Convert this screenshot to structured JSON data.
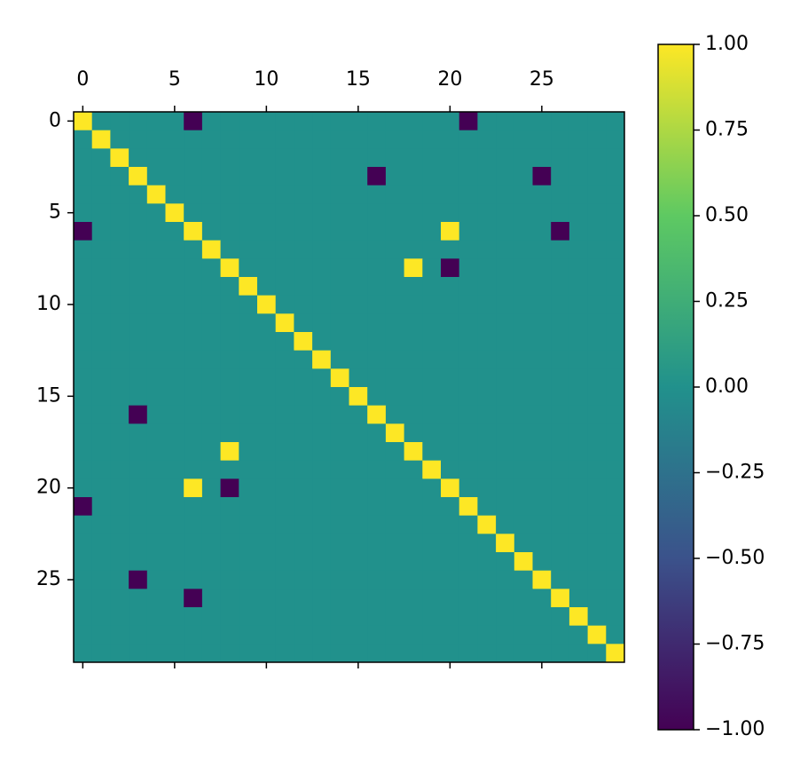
{
  "chart_data": {
    "type": "heatmap",
    "xlim": [
      -0.5,
      29.5
    ],
    "ylim": [
      29.5,
      -0.5
    ],
    "xticks": [
      0,
      5,
      10,
      15,
      20,
      25
    ],
    "yticks": [
      0,
      5,
      10,
      15,
      20,
      25
    ],
    "colorscale": [
      "#440154",
      "#3b528b",
      "#21918c",
      "#5ec962",
      "#fde725"
    ],
    "colorbar_lim": [
      -1,
      1
    ],
    "colorbar_ticks": [
      {
        "value": 1,
        "label": "1.00"
      },
      {
        "value": 0.75,
        "label": "0.75"
      },
      {
        "value": 0.5,
        "label": "0.50"
      },
      {
        "value": 0.25,
        "label": "0.25"
      },
      {
        "value": 0,
        "label": "0.00"
      },
      {
        "value": -0.25,
        "label": "−0.25"
      },
      {
        "value": -0.5,
        "label": "−0.50"
      },
      {
        "value": -0.75,
        "label": "−0.75"
      },
      {
        "value": -1,
        "label": "−1.00"
      }
    ],
    "values": [
      [
        1,
        0,
        0,
        0,
        0,
        0,
        -1,
        0,
        0,
        0,
        0,
        0,
        0,
        0,
        0,
        0,
        0,
        0,
        0,
        0,
        0,
        -1,
        0,
        0,
        0,
        0,
        0,
        0,
        0,
        0
      ],
      [
        0,
        1,
        0,
        0,
        0,
        0,
        0,
        0,
        0,
        0,
        0,
        0,
        0,
        0,
        0,
        0,
        0,
        0,
        0,
        0,
        0,
        0,
        0,
        0,
        0,
        0,
        0,
        0,
        0,
        0
      ],
      [
        0,
        0,
        1,
        0,
        0,
        0,
        0,
        0,
        0,
        0,
        0,
        0,
        0,
        0,
        0,
        0,
        0,
        0,
        0,
        0,
        0,
        0,
        0,
        0,
        0,
        0,
        0,
        0,
        0,
        0
      ],
      [
        0,
        0,
        0,
        1,
        0,
        0,
        0,
        0,
        0,
        0,
        0,
        0,
        0,
        0,
        0,
        0,
        -1,
        0,
        0,
        0,
        0,
        0,
        0,
        0,
        0,
        -1,
        0,
        0,
        0,
        0
      ],
      [
        0,
        0,
        0,
        0,
        1,
        0,
        0,
        0,
        0,
        0,
        0,
        0,
        0,
        0,
        0,
        0,
        0,
        0,
        0,
        0,
        0,
        0,
        0,
        0,
        0,
        0,
        0,
        0,
        0,
        0
      ],
      [
        0,
        0,
        0,
        0,
        0,
        1,
        0,
        0,
        0,
        0,
        0,
        0,
        0,
        0,
        0,
        0,
        0,
        0,
        0,
        0,
        0,
        0,
        0,
        0,
        0,
        0,
        0,
        0,
        0,
        0
      ],
      [
        -1,
        0,
        0,
        0,
        0,
        0,
        1,
        0,
        0,
        0,
        0,
        0,
        0,
        0,
        0,
        0,
        0,
        0,
        0,
        0,
        1,
        0,
        0,
        0,
        0,
        0,
        -1,
        0,
        0,
        0
      ],
      [
        0,
        0,
        0,
        0,
        0,
        0,
        0,
        1,
        0,
        0,
        0,
        0,
        0,
        0,
        0,
        0,
        0,
        0,
        0,
        0,
        0,
        0,
        0,
        0,
        0,
        0,
        0,
        0,
        0,
        0
      ],
      [
        0,
        0,
        0,
        0,
        0,
        0,
        0,
        0,
        1,
        0,
        0,
        0,
        0,
        0,
        0,
        0,
        0,
        0,
        1,
        0,
        -1,
        0,
        0,
        0,
        0,
        0,
        0,
        0,
        0,
        0
      ],
      [
        0,
        0,
        0,
        0,
        0,
        0,
        0,
        0,
        0,
        1,
        0,
        0,
        0,
        0,
        0,
        0,
        0,
        0,
        0,
        0,
        0,
        0,
        0,
        0,
        0,
        0,
        0,
        0,
        0,
        0
      ],
      [
        0,
        0,
        0,
        0,
        0,
        0,
        0,
        0,
        0,
        0,
        1,
        0,
        0,
        0,
        0,
        0,
        0,
        0,
        0,
        0,
        0,
        0,
        0,
        0,
        0,
        0,
        0,
        0,
        0,
        0
      ],
      [
        0,
        0,
        0,
        0,
        0,
        0,
        0,
        0,
        0,
        0,
        0,
        1,
        0,
        0,
        0,
        0,
        0,
        0,
        0,
        0,
        0,
        0,
        0,
        0,
        0,
        0,
        0,
        0,
        0,
        0
      ],
      [
        0,
        0,
        0,
        0,
        0,
        0,
        0,
        0,
        0,
        0,
        0,
        0,
        1,
        0,
        0,
        0,
        0,
        0,
        0,
        0,
        0,
        0,
        0,
        0,
        0,
        0,
        0,
        0,
        0,
        0
      ],
      [
        0,
        0,
        0,
        0,
        0,
        0,
        0,
        0,
        0,
        0,
        0,
        0,
        0,
        1,
        0,
        0,
        0,
        0,
        0,
        0,
        0,
        0,
        0,
        0,
        0,
        0,
        0,
        0,
        0,
        0
      ],
      [
        0,
        0,
        0,
        0,
        0,
        0,
        0,
        0,
        0,
        0,
        0,
        0,
        0,
        0,
        1,
        0,
        0,
        0,
        0,
        0,
        0,
        0,
        0,
        0,
        0,
        0,
        0,
        0,
        0,
        0
      ],
      [
        0,
        0,
        0,
        0,
        0,
        0,
        0,
        0,
        0,
        0,
        0,
        0,
        0,
        0,
        0,
        1,
        0,
        0,
        0,
        0,
        0,
        0,
        0,
        0,
        0,
        0,
        0,
        0,
        0,
        0
      ],
      [
        0,
        0,
        0,
        -1,
        0,
        0,
        0,
        0,
        0,
        0,
        0,
        0,
        0,
        0,
        0,
        0,
        1,
        0,
        0,
        0,
        0,
        0,
        0,
        0,
        0,
        0,
        0,
        0,
        0,
        0
      ],
      [
        0,
        0,
        0,
        0,
        0,
        0,
        0,
        0,
        0,
        0,
        0,
        0,
        0,
        0,
        0,
        0,
        0,
        1,
        0,
        0,
        0,
        0,
        0,
        0,
        0,
        0,
        0,
        0,
        0,
        0
      ],
      [
        0,
        0,
        0,
        0,
        0,
        0,
        0,
        0,
        1,
        0,
        0,
        0,
        0,
        0,
        0,
        0,
        0,
        0,
        1,
        0,
        0,
        0,
        0,
        0,
        0,
        0,
        0,
        0,
        0,
        0
      ],
      [
        0,
        0,
        0,
        0,
        0,
        0,
        0,
        0,
        0,
        0,
        0,
        0,
        0,
        0,
        0,
        0,
        0,
        0,
        0,
        1,
        0,
        0,
        0,
        0,
        0,
        0,
        0,
        0,
        0,
        0
      ],
      [
        0,
        0,
        0,
        0,
        0,
        0,
        1,
        0,
        -1,
        0,
        0,
        0,
        0,
        0,
        0,
        0,
        0,
        0,
        0,
        0,
        1,
        0,
        0,
        0,
        0,
        0,
        0,
        0,
        0,
        0
      ],
      [
        -1,
        0,
        0,
        0,
        0,
        0,
        0,
        0,
        0,
        0,
        0,
        0,
        0,
        0,
        0,
        0,
        0,
        0,
        0,
        0,
        0,
        1,
        0,
        0,
        0,
        0,
        0,
        0,
        0,
        0
      ],
      [
        0,
        0,
        0,
        0,
        0,
        0,
        0,
        0,
        0,
        0,
        0,
        0,
        0,
        0,
        0,
        0,
        0,
        0,
        0,
        0,
        0,
        0,
        1,
        0,
        0,
        0,
        0,
        0,
        0,
        0
      ],
      [
        0,
        0,
        0,
        0,
        0,
        0,
        0,
        0,
        0,
        0,
        0,
        0,
        0,
        0,
        0,
        0,
        0,
        0,
        0,
        0,
        0,
        0,
        0,
        1,
        0,
        0,
        0,
        0,
        0,
        0
      ],
      [
        0,
        0,
        0,
        0,
        0,
        0,
        0,
        0,
        0,
        0,
        0,
        0,
        0,
        0,
        0,
        0,
        0,
        0,
        0,
        0,
        0,
        0,
        0,
        0,
        1,
        0,
        0,
        0,
        0,
        0
      ],
      [
        0,
        0,
        0,
        -1,
        0,
        0,
        0,
        0,
        0,
        0,
        0,
        0,
        0,
        0,
        0,
        0,
        0,
        0,
        0,
        0,
        0,
        0,
        0,
        0,
        0,
        1,
        0,
        0,
        0,
        0
      ],
      [
        0,
        0,
        0,
        0,
        0,
        0,
        -1,
        0,
        0,
        0,
        0,
        0,
        0,
        0,
        0,
        0,
        0,
        0,
        0,
        0,
        0,
        0,
        0,
        0,
        0,
        0,
        1,
        0,
        0,
        0
      ],
      [
        0,
        0,
        0,
        0,
        0,
        0,
        0,
        0,
        0,
        0,
        0,
        0,
        0,
        0,
        0,
        0,
        0,
        0,
        0,
        0,
        0,
        0,
        0,
        0,
        0,
        0,
        0,
        1,
        0,
        0
      ],
      [
        0,
        0,
        0,
        0,
        0,
        0,
        0,
        0,
        0,
        0,
        0,
        0,
        0,
        0,
        0,
        0,
        0,
        0,
        0,
        0,
        0,
        0,
        0,
        0,
        0,
        0,
        0,
        0,
        1,
        0
      ],
      [
        0,
        0,
        0,
        0,
        0,
        0,
        0,
        0,
        0,
        0,
        0,
        0,
        0,
        0,
        0,
        0,
        0,
        0,
        0,
        0,
        0,
        0,
        0,
        0,
        0,
        0,
        0,
        0,
        0,
        1
      ]
    ]
  }
}
